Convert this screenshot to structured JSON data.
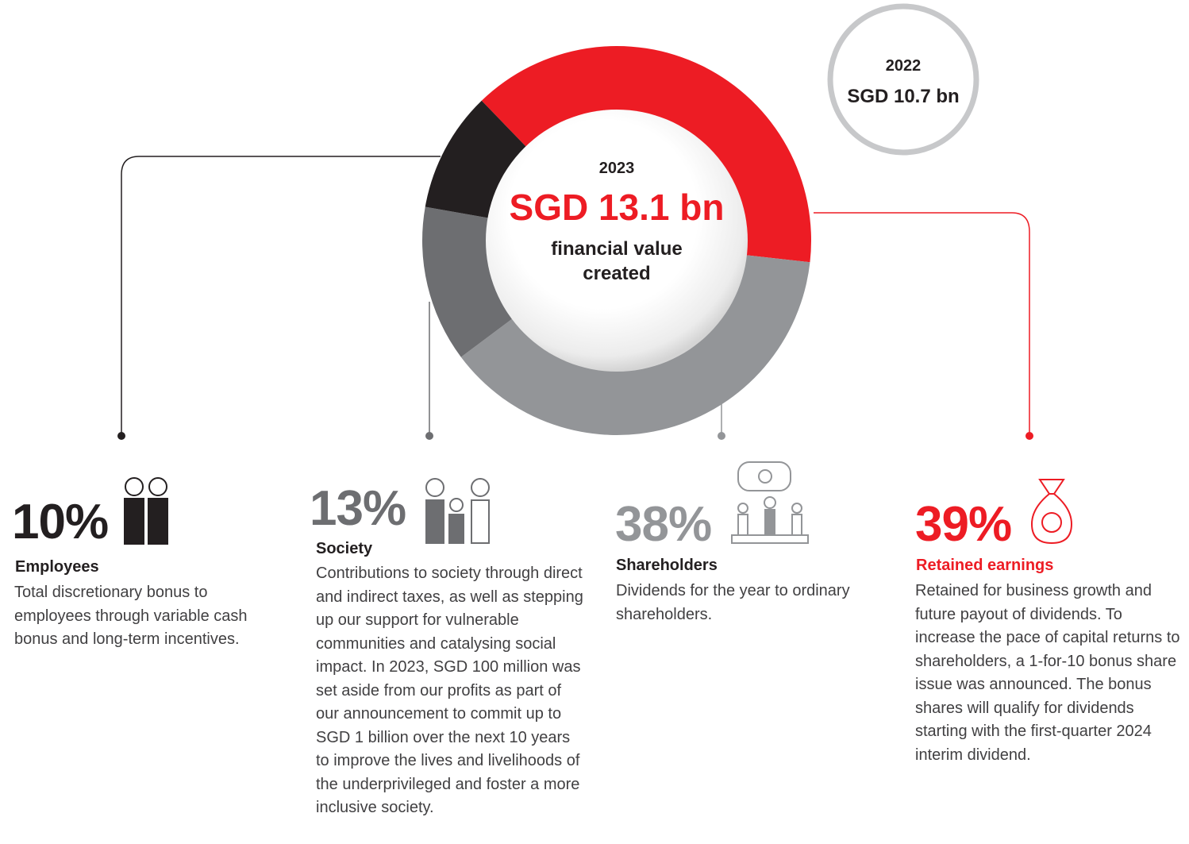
{
  "chart_data": {
    "type": "pie",
    "center": {
      "year": "2023",
      "value": "SGD 13.1 bn",
      "caption": "financial value created"
    },
    "comparison": {
      "year": "2022",
      "value": "SGD 10.7 bn"
    },
    "categories": [
      "Employees",
      "Society",
      "Shareholders",
      "Retained earnings"
    ],
    "values": [
      10,
      13,
      38,
      39
    ],
    "value_labels": [
      "10%",
      "13%",
      "38%",
      "39%"
    ],
    "colors": [
      "#231f20",
      "#6d6e71",
      "#939598",
      "#ed1c24"
    ],
    "descriptions": [
      "Total discretionary bonus to employees through variable cash bonus and long-term incentives.",
      "Contributions to society through direct and indirect taxes, as well as stepping up our support for vulnerable communities and catalysing social impact. In 2023, SGD 100 million was set aside from our profits as part of our announcement to commit up to SGD 1 billion over the next 10 years to improve the lives and livelihoods of the underprivileged and foster a more inclusive society.",
      "Dividends for the year to ordinary shareholders.",
      "Retained for business growth and future payout of dividends. To increase the pace of capital returns to shareholders, a 1-for-10 bonus share issue was announced. The bonus shares will qualify for dividends starting with the first-quarter 2024 interim dividend."
    ]
  }
}
